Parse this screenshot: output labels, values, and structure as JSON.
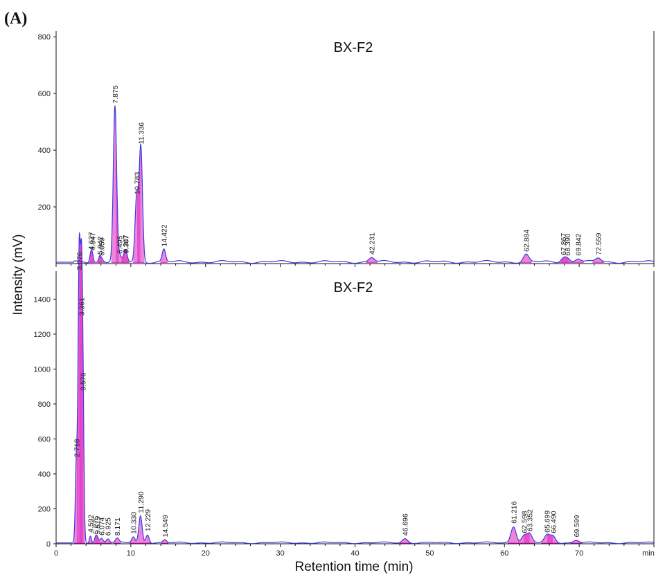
{
  "figure": {
    "panel_label": "(A)",
    "ylabel": "Intensity (mV)",
    "xlabel": "Retention time (min)",
    "x_unit": "min",
    "colors": {
      "trace": "#3a3adf",
      "baseline": "#e020c0",
      "axis": "#111111"
    }
  },
  "chart_data": [
    {
      "type": "line",
      "title": "BX-F2",
      "xlim": [
        0,
        80
      ],
      "ylim": [
        0,
        820
      ],
      "xticks": [
        0,
        10,
        20,
        30,
        40,
        50,
        60,
        70
      ],
      "yticks": [
        200,
        400,
        600,
        800
      ],
      "peaks": [
        {
          "x": 4.627,
          "y": 38,
          "label": "4.627"
        },
        {
          "x": 4.847,
          "y": 36,
          "label": "4.847"
        },
        {
          "x": 5.842,
          "y": 22,
          "label": "5.842"
        },
        {
          "x": 6.059,
          "y": 18,
          "label": "6.059"
        },
        {
          "x": 7.875,
          "y": 555,
          "label": "7.875"
        },
        {
          "x": 8.495,
          "y": 25,
          "label": "8.495"
        },
        {
          "x": 9.247,
          "y": 28,
          "label": "9.247"
        },
        {
          "x": 9.307,
          "y": 26,
          "label": "9.307"
        },
        {
          "x": 10.783,
          "y": 235,
          "label": "10.783"
        },
        {
          "x": 11.336,
          "y": 412,
          "label": "11.336"
        },
        {
          "x": 14.422,
          "y": 50,
          "label": "14.422"
        },
        {
          "x": 42.231,
          "y": 22,
          "label": "42.231"
        },
        {
          "x": 62.884,
          "y": 32,
          "label": "62.884"
        },
        {
          "x": 67.867,
          "y": 20,
          "label": "67.867"
        },
        {
          "x": 68.39,
          "y": 18,
          "label": "68.390"
        },
        {
          "x": 69.842,
          "y": 18,
          "label": "69.842"
        },
        {
          "x": 72.559,
          "y": 20,
          "label": "72.559"
        }
      ]
    },
    {
      "type": "line",
      "title": "BX-F2",
      "xlim": [
        0,
        80
      ],
      "ylim": [
        0,
        1560
      ],
      "xticks": [
        0,
        10,
        20,
        30,
        40,
        50,
        60,
        70
      ],
      "yticks": [
        0,
        200,
        400,
        600,
        800,
        1000,
        1200,
        1400
      ],
      "peaks": [
        {
          "x": 2.718,
          "y": 480,
          "label": "2.718"
        },
        {
          "x": 3.076,
          "y": 1550,
          "label": "3.076"
        },
        {
          "x": 3.361,
          "y": 1290,
          "label": "3.361"
        },
        {
          "x": 3.576,
          "y": 860,
          "label": "3.576"
        },
        {
          "x": 4.592,
          "y": 48,
          "label": "4.592"
        },
        {
          "x": 5.275,
          "y": 40,
          "label": "5.275"
        },
        {
          "x": 5.515,
          "y": 38,
          "label": "5.515"
        },
        {
          "x": 6.074,
          "y": 32,
          "label": "6.074"
        },
        {
          "x": 6.925,
          "y": 30,
          "label": "6.925"
        },
        {
          "x": 8.171,
          "y": 30,
          "label": "8.171"
        },
        {
          "x": 10.33,
          "y": 40,
          "label": "10.330"
        },
        {
          "x": 11.29,
          "y": 160,
          "label": "11.290"
        },
        {
          "x": 12.229,
          "y": 55,
          "label": "12.229"
        },
        {
          "x": 14.549,
          "y": 22,
          "label": "14.549"
        },
        {
          "x": 46.696,
          "y": 30,
          "label": "46.696"
        },
        {
          "x": 61.216,
          "y": 100,
          "label": "61.216"
        },
        {
          "x": 62.598,
          "y": 45,
          "label": "62.598"
        },
        {
          "x": 63.352,
          "y": 55,
          "label": "63.352"
        },
        {
          "x": 65.699,
          "y": 48,
          "label": "65.699"
        },
        {
          "x": 66.49,
          "y": 45,
          "label": "66.490"
        },
        {
          "x": 69.599,
          "y": 22,
          "label": "69.599"
        }
      ]
    }
  ]
}
